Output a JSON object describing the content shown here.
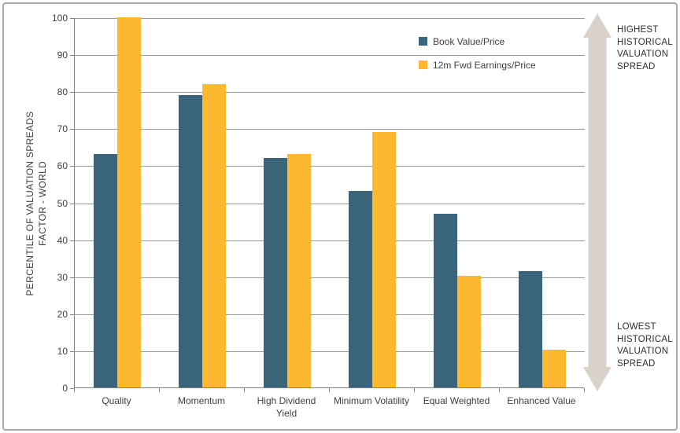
{
  "chart_data": {
    "type": "bar",
    "title": "",
    "categories": [
      "Quality",
      "Momentum",
      "High Dividend Yield",
      "Minimum Volatility",
      "Equal Weighted",
      "Enhanced Value"
    ],
    "series": [
      {
        "name": "Book Value/Price",
        "color": "#3A647A",
        "values": [
          63,
          79,
          62,
          53,
          47,
          31.5
        ]
      },
      {
        "name": "12m Fwd Earnings/Price",
        "color": "#FCB82E",
        "values": [
          100,
          82,
          63,
          69,
          30.2,
          10.3
        ]
      }
    ],
    "xlabel": "",
    "ylabel_line1": "PERCENTILE OF VALUATION SPREADS",
    "ylabel_line2": "FACTOR - WORLD",
    "ylim": [
      0,
      100
    ],
    "ytick_step": 10,
    "grid": "horizontal",
    "legend_position": "top-center-inside"
  },
  "annotations": {
    "highest": "HIGHEST HISTORICAL VALUATION SPREAD",
    "lowest": "LOWEST HISTORICAL VALUATION SPREAD",
    "arrow_icon": "double-headed-vertical-arrow",
    "arrow_color": "#D9D2CA"
  },
  "colors": {
    "gridline": "#999999",
    "axis": "#808080",
    "border": "#A9A9A9",
    "label": "#3F3F3F",
    "background": "#FFFFFF"
  }
}
